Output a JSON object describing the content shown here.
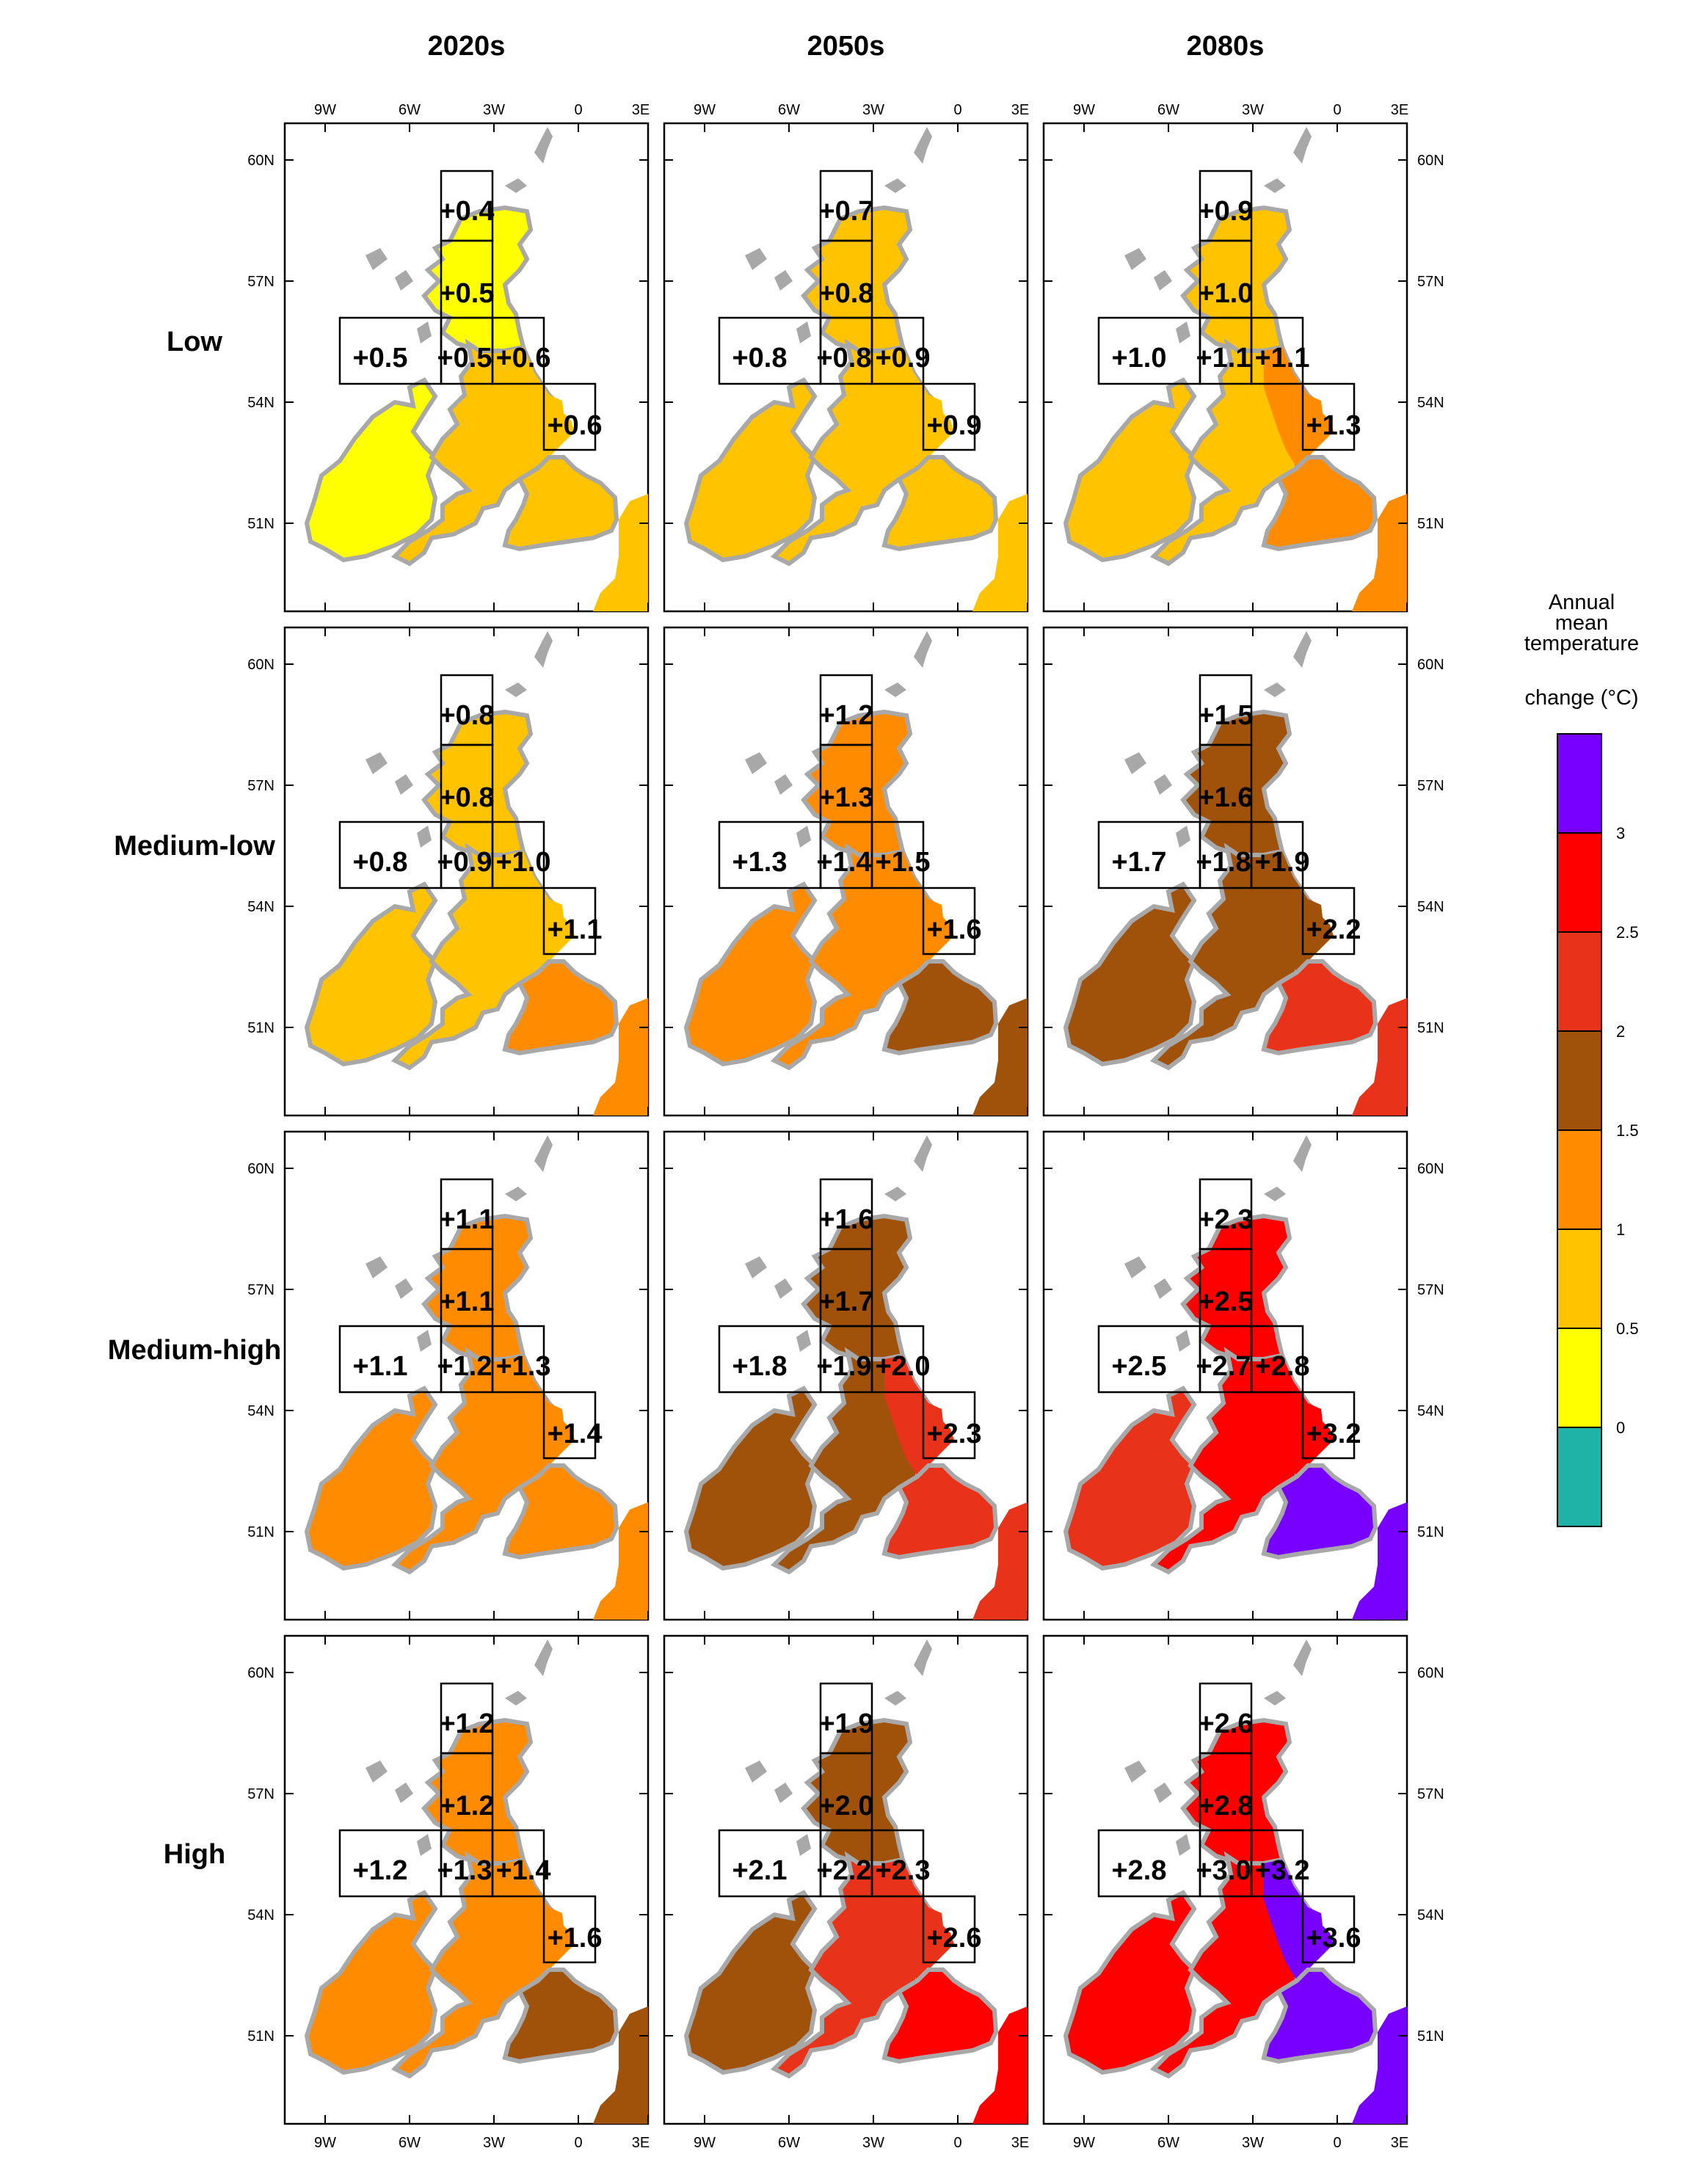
{
  "columns": [
    "2020s",
    "2050s",
    "2080s"
  ],
  "rows": [
    "Low",
    "Medium-low",
    "Medium-high",
    "High"
  ],
  "lon_ticks": [
    "9W",
    "6W",
    "3W",
    "0",
    "3E"
  ],
  "lat_ticks": [
    "60N",
    "57N",
    "54N",
    "51N"
  ],
  "legend": {
    "title": "Annual mean temperature",
    "subtitle": "change (°C)",
    "bin_labels": [
      "0",
      "0.5",
      "1",
      "1.5",
      "2",
      "2.5",
      "3"
    ],
    "colors": [
      "#1fb3a8",
      "#ffff00",
      "#ffc300",
      "#ff8c00",
      "#a0520a",
      "#e8321a",
      "#ff0000",
      "#7700ff"
    ]
  },
  "colors": {
    "lowland_gray": "#a8a8a8"
  },
  "panels": [
    [
      {
        "scot_n": "+0.4",
        "scot_s": "+0.5",
        "ireland": "+0.5",
        "midlands": "+0.5",
        "east": "+0.6",
        "se": "+0.6",
        "fill": {
          "ireland": 1,
          "north": 1,
          "main": 2,
          "east": 2,
          "se": 2
        }
      },
      {
        "scot_n": "+0.7",
        "scot_s": "+0.8",
        "ireland": "+0.8",
        "midlands": "+0.8",
        "east": "+0.9",
        "se": "+0.9",
        "fill": {
          "ireland": 2,
          "north": 2,
          "main": 2,
          "east": 2,
          "se": 2
        }
      },
      {
        "scot_n": "+0.9",
        "scot_s": "+1.0",
        "ireland": "+1.0",
        "midlands": "+1.1",
        "east": "+1.1",
        "se": "+1.3",
        "fill": {
          "ireland": 2,
          "north": 2,
          "main": 2,
          "east": 3,
          "se": 3
        }
      }
    ],
    [
      {
        "scot_n": "+0.8",
        "scot_s": "+0.8",
        "ireland": "+0.8",
        "midlands": "+0.9",
        "east": "+1.0",
        "se": "+1.1",
        "fill": {
          "ireland": 2,
          "north": 2,
          "main": 2,
          "east": 2,
          "se": 3
        }
      },
      {
        "scot_n": "+1.2",
        "scot_s": "+1.3",
        "ireland": "+1.3",
        "midlands": "+1.4",
        "east": "+1.5",
        "se": "+1.6",
        "fill": {
          "ireland": 3,
          "north": 3,
          "main": 3,
          "east": 3,
          "se": 4
        }
      },
      {
        "scot_n": "+1.5",
        "scot_s": "+1.6",
        "ireland": "+1.7",
        "midlands": "+1.8",
        "east": "+1.9",
        "se": "+2.2",
        "fill": {
          "ireland": 4,
          "north": 4,
          "main": 4,
          "east": 4,
          "se": 5
        }
      }
    ],
    [
      {
        "scot_n": "+1.1",
        "scot_s": "+1.1",
        "ireland": "+1.1",
        "midlands": "+1.2",
        "east": "+1.3",
        "se": "+1.4",
        "fill": {
          "ireland": 3,
          "north": 3,
          "main": 3,
          "east": 3,
          "se": 3
        }
      },
      {
        "scot_n": "+1.6",
        "scot_s": "+1.7",
        "ireland": "+1.8",
        "midlands": "+1.9",
        "east": "+2.0",
        "se": "+2.3",
        "fill": {
          "ireland": 4,
          "north": 4,
          "main": 4,
          "east": 5,
          "se": 5
        }
      },
      {
        "scot_n": "+2.3",
        "scot_s": "+2.5",
        "ireland": "+2.5",
        "midlands": "+2.7",
        "east": "+2.8",
        "se": "+3.2",
        "fill": {
          "ireland": 5,
          "north": 6,
          "main": 6,
          "east": 6,
          "se": 7
        }
      }
    ],
    [
      {
        "scot_n": "+1.2",
        "scot_s": "+1.2",
        "ireland": "+1.2",
        "midlands": "+1.3",
        "east": "+1.4",
        "se": "+1.6",
        "fill": {
          "ireland": 3,
          "north": 3,
          "main": 3,
          "east": 3,
          "se": 4
        }
      },
      {
        "scot_n": "+1.9",
        "scot_s": "+2.0",
        "ireland": "+2.1",
        "midlands": "+2.2",
        "east": "+2.3",
        "se": "+2.6",
        "fill": {
          "ireland": 4,
          "north": 4,
          "main": 5,
          "east": 5,
          "se": 6
        }
      },
      {
        "scot_n": "+2.6",
        "scot_s": "+2.8",
        "ireland": "+2.8",
        "midlands": "+3.0",
        "east": "+3.2",
        "se": "+3.6",
        "fill": {
          "ireland": 6,
          "north": 6,
          "main": 6,
          "east": 7,
          "se": 7
        }
      }
    ]
  ]
}
